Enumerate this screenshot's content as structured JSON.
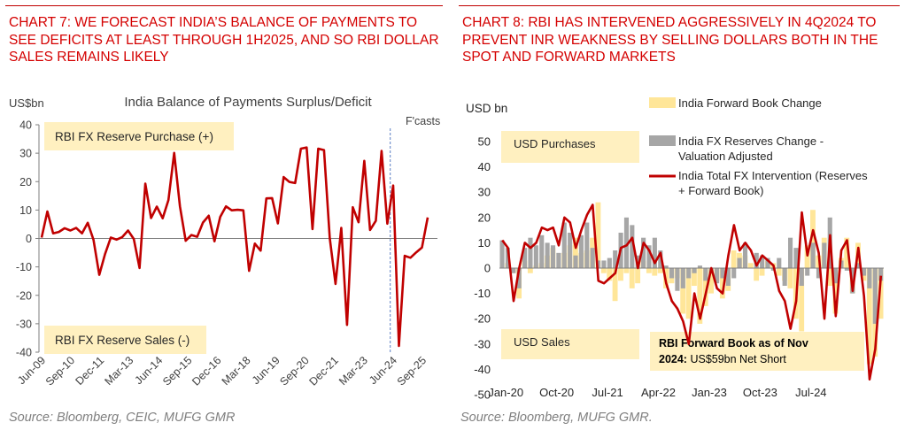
{
  "left_title": "CHART 7: WE FORECAST INDIA’S BALANCE OF PAYMENTS TO SEE DEFICITS AT LEAST THROUGH 1H2025, AND SO RBI DOLLAR SALES REMAINS LIKELY",
  "left_source": "Source: Bloomberg, CEIC, MUFG GMR",
  "right_title": "CHART 8: RBI HAS INTERVENED AGGRESSIVELY IN 4Q2024 TO PREVENT INR WEAKNESS BY SELLING DOLLARS BOTH IN THE SPOT AND FORWARD MARKETS",
  "right_source": "Source: Bloomberg, MUFG GMR.",
  "colors": {
    "red": "#c00000",
    "title_red": "#d40000",
    "grey_bar": "#a6a6a6",
    "yellow_bar": "#ffe699",
    "box_fill": "#fff0c0",
    "axis": "#7f7f7f"
  },
  "chart_data": [
    {
      "type": "line",
      "title": "India Balance of Payments Surplus/Deficit",
      "ylabel": "US$bn",
      "ylim": [
        -40,
        40
      ],
      "yticks": [
        -40,
        -30,
        -20,
        -10,
        0,
        10,
        20,
        30,
        40
      ],
      "x_tick_labels": [
        "Jun-09",
        "Sep-10",
        "Dec-11",
        "Mar-13",
        "Jun-14",
        "Sep-15",
        "Dec-16",
        "Mar-18",
        "Jun-19",
        "Sep-20",
        "Dec-21",
        "Mar-23",
        "Jun-24",
        "Sep-25"
      ],
      "annotations": {
        "forecast_label": "F'casts",
        "purchase_box": "RBI FX Reserve Purchase (+)",
        "sales_box": "RBI FX Reserve Sales (-)"
      },
      "forecast_start_index": 61,
      "series": [
        {
          "values": [
            0.3,
            9.5,
            1.8,
            2.3,
            3.6,
            2.8,
            3.7,
            1.8,
            5.5,
            -0.5,
            -12.8,
            -5.5,
            0.3,
            -0.4,
            0.5,
            2.8,
            -0.2,
            -10.4,
            19.3,
            7.2,
            11.2,
            7.1,
            13.5,
            30.1,
            11.3,
            -0.8,
            1.2,
            0.6,
            5.6,
            8.0,
            -1.0,
            7.6,
            11.3,
            9.9,
            10.1,
            9.9,
            -11.4,
            -1.8,
            -4.3,
            14.1,
            14.2,
            5.3,
            21.6,
            19.9,
            19.5,
            31.6,
            32.0,
            3.3,
            31.6,
            31.1,
            0.1,
            -16.0,
            3.7,
            -30.4,
            11.0,
            5.7,
            27.3,
            3.0,
            6.2,
            30.8,
            5.2,
            18.6,
            -37.8,
            -6.1,
            -6.8,
            -4.9,
            -3.2,
            7.4
          ]
        }
      ]
    },
    {
      "type": "bar",
      "ylabel": "USD bn",
      "ylim": [
        -50,
        50
      ],
      "yticks": [
        -50,
        -40,
        -30,
        -20,
        -10,
        0,
        10,
        20,
        30,
        40,
        50
      ],
      "x_tick_labels": [
        "Jan-20",
        "Oct-20",
        "Jul-21",
        "Apr-22",
        "Jan-23",
        "Oct-23",
        "Jul-24"
      ],
      "annotations": {
        "purchases_box": "USD Purchases",
        "sales_box": "USD Sales",
        "forward_book_note_line1": "RBI Forward Book as of Nov",
        "forward_book_note_line2_bold": "2024:",
        "forward_book_note_line2_rest": " US$59bn Net Short"
      },
      "legend": {
        "placement": "top-right",
        "forward": "India Forward Book Change",
        "reserves_line1": "India FX Reserves Change -",
        "reserves_line2": "Valuation Adjusted",
        "total_line1": "India Total FX Intervention (Reserves",
        "total_line2": "+ Forward Book)"
      },
      "series": [
        {
          "name": "India Forward Book Change",
          "values": [
            0,
            2,
            -2,
            -12,
            3,
            -2,
            1,
            2,
            5,
            8,
            0,
            6,
            9,
            12,
            6,
            7,
            12,
            26,
            -2,
            -5,
            -13,
            -5,
            -2,
            -8,
            -6,
            3,
            -2,
            -3,
            -2,
            -8,
            -6,
            -4,
            -18,
            -20,
            -7,
            -22,
            -15,
            -10,
            -5,
            -12,
            -9,
            7,
            6,
            5,
            2,
            -5,
            -3,
            3,
            2,
            -3,
            -5,
            -8,
            -20,
            -25,
            9,
            23,
            5,
            12,
            -7,
            -18,
            4,
            12,
            -10,
            10,
            -5,
            -38,
            -35,
            -20
          ]
        },
        {
          "name": "India FX Reserves Change - Valuation Adjusted",
          "values": [
            11,
            8,
            -2,
            -8,
            8,
            12,
            9,
            13,
            10,
            9,
            6,
            18,
            14,
            5,
            13,
            18,
            8,
            3,
            3,
            4,
            7,
            14,
            20,
            17,
            5,
            12,
            9,
            12,
            7,
            1,
            -4,
            -9,
            -8,
            -4,
            -2,
            1,
            -5,
            -2,
            -6,
            -4,
            -7,
            -4,
            4,
            10,
            0,
            6,
            5,
            4,
            -1,
            4,
            -7,
            12,
            8,
            -7,
            -3,
            10,
            -4,
            10,
            20,
            -6,
            3,
            -1,
            -10,
            2,
            -3,
            -8,
            -22,
            -5
          ]
        },
        {
          "name": "India Total FX Intervention (Reserves + Forward Book)",
          "values": [
            11,
            8,
            -13,
            0,
            10,
            8,
            10,
            16,
            15,
            16,
            9,
            20,
            18,
            8,
            15,
            21,
            25,
            -5,
            -6,
            -4,
            -2,
            8,
            9,
            12,
            0,
            10,
            7,
            2,
            6,
            -6,
            -13,
            -16,
            -21,
            -30,
            -10,
            -20,
            -10,
            0,
            -8,
            -10,
            5,
            17,
            7,
            10,
            7,
            1,
            5,
            3,
            1,
            -9,
            -13,
            -24,
            -13,
            22,
            5,
            15,
            6,
            -20,
            13,
            -19,
            7,
            11,
            -9,
            8,
            -11,
            -44,
            -32,
            -3
          ]
        }
      ]
    }
  ]
}
